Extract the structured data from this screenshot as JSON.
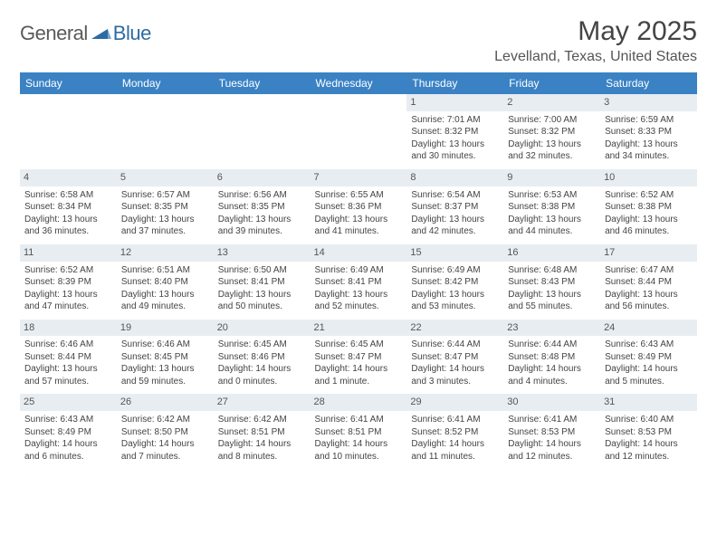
{
  "brand": {
    "general": "General",
    "blue": "Blue",
    "logo_fill": "#2d6ca2"
  },
  "title": {
    "month": "May 2025",
    "location": "Levelland, Texas, United States",
    "title_fontsize": 30,
    "location_fontsize": 16
  },
  "days_of_week": [
    "Sunday",
    "Monday",
    "Tuesday",
    "Wednesday",
    "Thursday",
    "Friday",
    "Saturday"
  ],
  "colors": {
    "header_bg": "#3b82c4",
    "header_text": "#ffffff",
    "daynum_bg": "#e8edf2",
    "border": "#2d6ca2",
    "text": "#444444",
    "background": "#ffffff"
  },
  "layout": {
    "columns": 7,
    "rows": 5,
    "cell_fontsize": 10
  },
  "weeks": [
    [
      {
        "n": "",
        "sr": "",
        "ss": "",
        "dl": ""
      },
      {
        "n": "",
        "sr": "",
        "ss": "",
        "dl": ""
      },
      {
        "n": "",
        "sr": "",
        "ss": "",
        "dl": ""
      },
      {
        "n": "",
        "sr": "",
        "ss": "",
        "dl": ""
      },
      {
        "n": "1",
        "sr": "Sunrise: 7:01 AM",
        "ss": "Sunset: 8:32 PM",
        "dl": "Daylight: 13 hours and 30 minutes."
      },
      {
        "n": "2",
        "sr": "Sunrise: 7:00 AM",
        "ss": "Sunset: 8:32 PM",
        "dl": "Daylight: 13 hours and 32 minutes."
      },
      {
        "n": "3",
        "sr": "Sunrise: 6:59 AM",
        "ss": "Sunset: 8:33 PM",
        "dl": "Daylight: 13 hours and 34 minutes."
      }
    ],
    [
      {
        "n": "4",
        "sr": "Sunrise: 6:58 AM",
        "ss": "Sunset: 8:34 PM",
        "dl": "Daylight: 13 hours and 36 minutes."
      },
      {
        "n": "5",
        "sr": "Sunrise: 6:57 AM",
        "ss": "Sunset: 8:35 PM",
        "dl": "Daylight: 13 hours and 37 minutes."
      },
      {
        "n": "6",
        "sr": "Sunrise: 6:56 AM",
        "ss": "Sunset: 8:35 PM",
        "dl": "Daylight: 13 hours and 39 minutes."
      },
      {
        "n": "7",
        "sr": "Sunrise: 6:55 AM",
        "ss": "Sunset: 8:36 PM",
        "dl": "Daylight: 13 hours and 41 minutes."
      },
      {
        "n": "8",
        "sr": "Sunrise: 6:54 AM",
        "ss": "Sunset: 8:37 PM",
        "dl": "Daylight: 13 hours and 42 minutes."
      },
      {
        "n": "9",
        "sr": "Sunrise: 6:53 AM",
        "ss": "Sunset: 8:38 PM",
        "dl": "Daylight: 13 hours and 44 minutes."
      },
      {
        "n": "10",
        "sr": "Sunrise: 6:52 AM",
        "ss": "Sunset: 8:38 PM",
        "dl": "Daylight: 13 hours and 46 minutes."
      }
    ],
    [
      {
        "n": "11",
        "sr": "Sunrise: 6:52 AM",
        "ss": "Sunset: 8:39 PM",
        "dl": "Daylight: 13 hours and 47 minutes."
      },
      {
        "n": "12",
        "sr": "Sunrise: 6:51 AM",
        "ss": "Sunset: 8:40 PM",
        "dl": "Daylight: 13 hours and 49 minutes."
      },
      {
        "n": "13",
        "sr": "Sunrise: 6:50 AM",
        "ss": "Sunset: 8:41 PM",
        "dl": "Daylight: 13 hours and 50 minutes."
      },
      {
        "n": "14",
        "sr": "Sunrise: 6:49 AM",
        "ss": "Sunset: 8:41 PM",
        "dl": "Daylight: 13 hours and 52 minutes."
      },
      {
        "n": "15",
        "sr": "Sunrise: 6:49 AM",
        "ss": "Sunset: 8:42 PM",
        "dl": "Daylight: 13 hours and 53 minutes."
      },
      {
        "n": "16",
        "sr": "Sunrise: 6:48 AM",
        "ss": "Sunset: 8:43 PM",
        "dl": "Daylight: 13 hours and 55 minutes."
      },
      {
        "n": "17",
        "sr": "Sunrise: 6:47 AM",
        "ss": "Sunset: 8:44 PM",
        "dl": "Daylight: 13 hours and 56 minutes."
      }
    ],
    [
      {
        "n": "18",
        "sr": "Sunrise: 6:46 AM",
        "ss": "Sunset: 8:44 PM",
        "dl": "Daylight: 13 hours and 57 minutes."
      },
      {
        "n": "19",
        "sr": "Sunrise: 6:46 AM",
        "ss": "Sunset: 8:45 PM",
        "dl": "Daylight: 13 hours and 59 minutes."
      },
      {
        "n": "20",
        "sr": "Sunrise: 6:45 AM",
        "ss": "Sunset: 8:46 PM",
        "dl": "Daylight: 14 hours and 0 minutes."
      },
      {
        "n": "21",
        "sr": "Sunrise: 6:45 AM",
        "ss": "Sunset: 8:47 PM",
        "dl": "Daylight: 14 hours and 1 minute."
      },
      {
        "n": "22",
        "sr": "Sunrise: 6:44 AM",
        "ss": "Sunset: 8:47 PM",
        "dl": "Daylight: 14 hours and 3 minutes."
      },
      {
        "n": "23",
        "sr": "Sunrise: 6:44 AM",
        "ss": "Sunset: 8:48 PM",
        "dl": "Daylight: 14 hours and 4 minutes."
      },
      {
        "n": "24",
        "sr": "Sunrise: 6:43 AM",
        "ss": "Sunset: 8:49 PM",
        "dl": "Daylight: 14 hours and 5 minutes."
      }
    ],
    [
      {
        "n": "25",
        "sr": "Sunrise: 6:43 AM",
        "ss": "Sunset: 8:49 PM",
        "dl": "Daylight: 14 hours and 6 minutes."
      },
      {
        "n": "26",
        "sr": "Sunrise: 6:42 AM",
        "ss": "Sunset: 8:50 PM",
        "dl": "Daylight: 14 hours and 7 minutes."
      },
      {
        "n": "27",
        "sr": "Sunrise: 6:42 AM",
        "ss": "Sunset: 8:51 PM",
        "dl": "Daylight: 14 hours and 8 minutes."
      },
      {
        "n": "28",
        "sr": "Sunrise: 6:41 AM",
        "ss": "Sunset: 8:51 PM",
        "dl": "Daylight: 14 hours and 10 minutes."
      },
      {
        "n": "29",
        "sr": "Sunrise: 6:41 AM",
        "ss": "Sunset: 8:52 PM",
        "dl": "Daylight: 14 hours and 11 minutes."
      },
      {
        "n": "30",
        "sr": "Sunrise: 6:41 AM",
        "ss": "Sunset: 8:53 PM",
        "dl": "Daylight: 14 hours and 12 minutes."
      },
      {
        "n": "31",
        "sr": "Sunrise: 6:40 AM",
        "ss": "Sunset: 8:53 PM",
        "dl": "Daylight: 14 hours and 12 minutes."
      }
    ]
  ]
}
